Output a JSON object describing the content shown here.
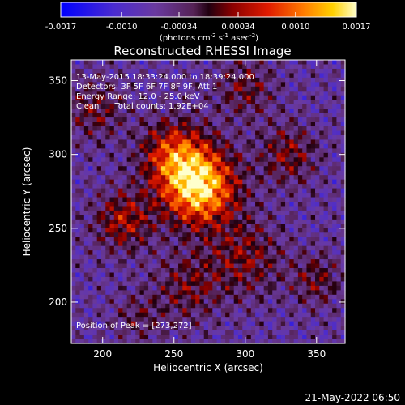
{
  "chart_data": {
    "type": "heatmap",
    "title": "Reconstructed RHESSI Image",
    "xlabel": "Heliocentric X (arcsec)",
    "ylabel": "Heliocentric Y (arcsec)",
    "xlim": [
      178,
      370
    ],
    "ylim": [
      172,
      364
    ],
    "x_ticks": [
      200,
      250,
      300,
      350
    ],
    "y_ticks": [
      200,
      250,
      300,
      350
    ],
    "colorbar": {
      "min": -0.0017,
      "max": 0.0017,
      "tick_labels": [
        "-0.0017",
        "-0.0010",
        "-0.00034",
        "0.00034",
        "0.0010",
        "0.0017"
      ],
      "tick_values": [
        -0.0017,
        -0.001,
        -0.00034,
        0.00034,
        0.001,
        0.0017
      ],
      "label_parts": [
        "(photons cm",
        "-2",
        " s",
        "-1",
        " asec",
        "-2",
        ")"
      ]
    },
    "annotations": [
      "13-May-2015 18:33:24.000 to 18:39:24.000",
      "Detectors: 3F 5F 6F 7F 8F 9F, Att 1",
      "Energy Range: 12.0 - 25.0 keV",
      "Clean      Total counts: 1.92E+04"
    ],
    "peak_label": "Position of Peak = [273,272]",
    "peak": [
      273,
      272
    ],
    "sources": [
      {
        "x": 268,
        "y": 278,
        "amp": 1.0,
        "sigma": 18
      },
      {
        "x": 250,
        "y": 300,
        "amp": 0.55,
        "sigma": 16
      },
      {
        "x": 215,
        "y": 255,
        "amp": 0.45,
        "sigma": 14
      },
      {
        "x": 330,
        "y": 300,
        "amp": 0.35,
        "sigma": 14
      },
      {
        "x": 300,
        "y": 230,
        "amp": 0.35,
        "sigma": 18
      },
      {
        "x": 260,
        "y": 210,
        "amp": 0.3,
        "sigma": 16
      },
      {
        "x": 350,
        "y": 215,
        "amp": 0.3,
        "sigma": 12
      },
      {
        "x": 195,
        "y": 330,
        "amp": 0.3,
        "sigma": 14
      },
      {
        "x": 300,
        "y": 345,
        "amp": 0.3,
        "sigma": 14
      },
      {
        "x": 225,
        "y": 190,
        "amp": 0.2,
        "sigma": 12
      }
    ]
  },
  "footer": {
    "date": "21-May-2022 06:50"
  }
}
